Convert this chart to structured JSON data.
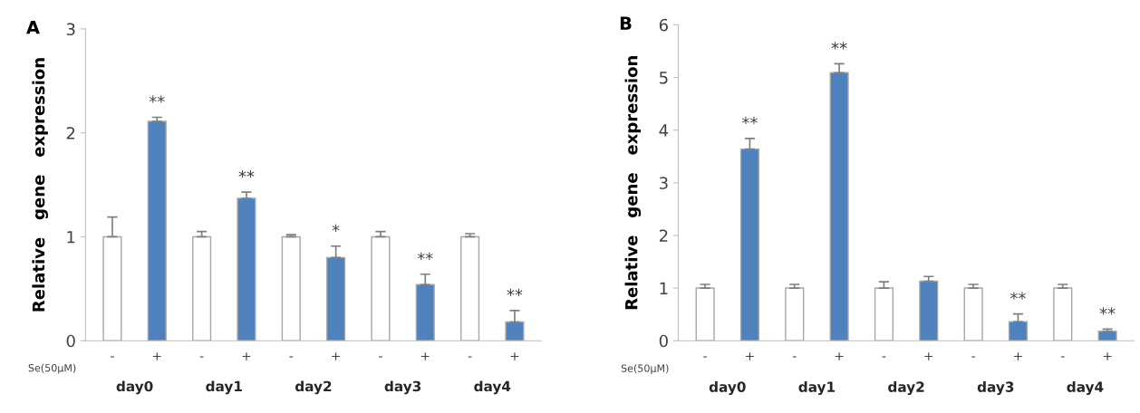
{
  "chart_data": [
    {
      "type": "bar",
      "title": "A",
      "ylabel": "Relative   gene   expression",
      "categories": [
        "-",
        "+",
        "-",
        "+",
        "-",
        "+",
        "-",
        "+",
        "-",
        "+"
      ],
      "values": [
        1.0,
        2.11,
        1.0,
        1.37,
        1.0,
        0.8,
        1.0,
        0.54,
        1.0,
        0.18
      ],
      "colors": [
        "#ffffff",
        "#4f81bd",
        "#ffffff",
        "#4f81bd",
        "#ffffff",
        "#4f81bd",
        "#ffffff",
        "#4f81bd",
        "#ffffff",
        "#4f81bd"
      ],
      "errors": [
        [
          1.0,
          1.19
        ],
        [
          2.11,
          2.15
        ],
        [
          1.0,
          1.05
        ],
        [
          1.37,
          1.43
        ],
        [
          1.0,
          1.02
        ],
        [
          0.8,
          0.91
        ],
        [
          1.0,
          1.05
        ],
        [
          0.54,
          0.64
        ],
        [
          1.0,
          1.03
        ],
        [
          0.18,
          0.29
        ]
      ],
      "value_labels": [
        null,
        "**",
        null,
        "**",
        null,
        "*",
        null,
        "**",
        null,
        "**"
      ],
      "ylim": [
        0,
        3
      ],
      "yticks": [
        0,
        1,
        2,
        3
      ],
      "grid": false,
      "annotations": [
        "Se(50μM)",
        "day0",
        "day1",
        "day2",
        "day3",
        "day4"
      ]
    },
    {
      "type": "bar",
      "title": "B",
      "ylabel": "Relative   gene   expression",
      "categories": [
        "-",
        "+",
        "-",
        "+",
        "-",
        "+",
        "-",
        "+",
        "-",
        "+"
      ],
      "values": [
        1.0,
        3.64,
        1.0,
        5.09,
        1.0,
        1.13,
        1.0,
        0.36,
        1.0,
        0.18
      ],
      "colors": [
        "#ffffff",
        "#4f81bd",
        "#ffffff",
        "#4f81bd",
        "#ffffff",
        "#4f81bd",
        "#ffffff",
        "#4f81bd",
        "#ffffff",
        "#4f81bd"
      ],
      "errors": [
        [
          1.0,
          1.07
        ],
        [
          3.64,
          3.84
        ],
        [
          1.0,
          1.07
        ],
        [
          5.09,
          5.26
        ],
        [
          1.0,
          1.12
        ],
        [
          1.13,
          1.22
        ],
        [
          1.0,
          1.07
        ],
        [
          0.36,
          0.51
        ],
        [
          1.0,
          1.07
        ],
        [
          0.18,
          0.22
        ]
      ],
      "value_labels": [
        null,
        "**",
        null,
        "**",
        null,
        null,
        null,
        "**",
        null,
        "**"
      ],
      "ylim": [
        0,
        6
      ],
      "yticks": [
        0,
        1,
        2,
        3,
        4,
        5,
        6
      ],
      "grid": false,
      "annotations": [
        "Se(50μM)",
        "day0",
        "day1",
        "day2",
        "day3",
        "day4"
      ]
    }
  ]
}
